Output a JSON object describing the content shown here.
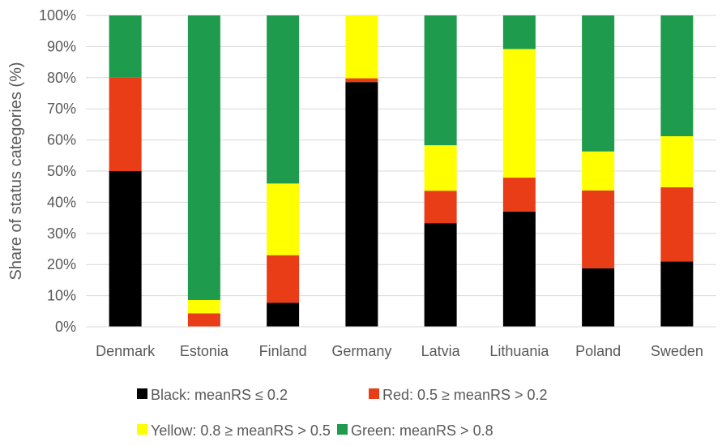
{
  "chart_data": {
    "type": "bar",
    "stacked": true,
    "ylabel": "Share of status categories (%)",
    "xlabel": "",
    "ylim": [
      0,
      100
    ],
    "yticks": [
      "0%",
      "10%",
      "20%",
      "30%",
      "40%",
      "50%",
      "60%",
      "70%",
      "80%",
      "90%",
      "100%"
    ],
    "categories": [
      "Denmark",
      "Estonia",
      "Finland",
      "Germany",
      "Latvia",
      "Lithuania",
      "Poland",
      "Sweden"
    ],
    "series": [
      {
        "name": "Black: meanRS ≤ 0.2",
        "color": "#000000",
        "values": [
          50,
          0,
          7.7,
          78.6,
          33.3,
          37,
          18.8,
          21
        ]
      },
      {
        "name": "Red: 0.5 ≥ meanRS > 0.2",
        "color": "#e93d17",
        "values": [
          30,
          4.3,
          15.3,
          1.2,
          10.4,
          10.9,
          25,
          23.8
        ]
      },
      {
        "name": "Yellow: 0.8 ≥ meanRS > 0.5",
        "color": "#ffff00",
        "values": [
          0,
          4.3,
          23,
          20.2,
          14.6,
          41.3,
          12.5,
          16.4
        ]
      },
      {
        "name": "Green: meanRS > 0.8",
        "color": "#1e9b4c",
        "values": [
          20,
          91.4,
          54,
          0,
          41.7,
          10.8,
          43.7,
          38.8
        ]
      }
    ],
    "grid": true,
    "legend_position": "bottom"
  }
}
